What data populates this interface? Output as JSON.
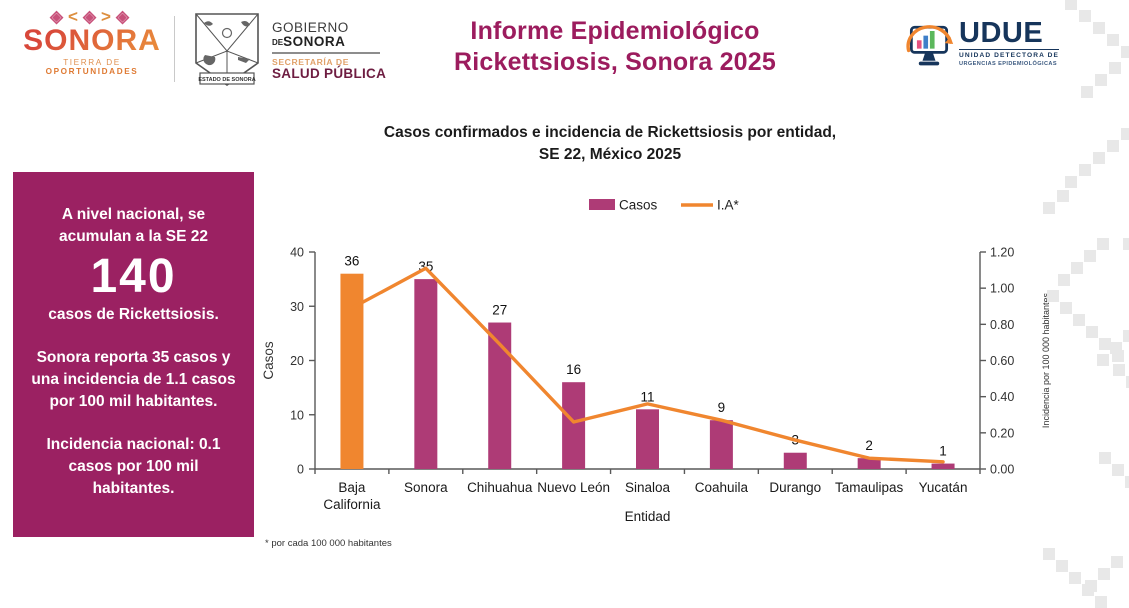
{
  "header": {
    "brand": {
      "ornament": "◈<◈>◈",
      "name": "SONORA",
      "tagline_light": "TIERRA DE ",
      "tagline_bold": "OPORTUNIDADES"
    },
    "government": {
      "seal_caption": "ESTADO DE SONORA",
      "line1": "GOBIERNO",
      "line2_small": "DE",
      "line2_bold": "SONORA",
      "line3": "SECRETARÍA DE",
      "line4": "SALUD PÚBLICA"
    },
    "title_line1": "Informe Epidemiológico",
    "title_line2": "Rickettsiosis, Sonora 2025",
    "udue": {
      "acronym": "UDUE",
      "subtitle_line1": "UNIDAD DETECTORA DE",
      "subtitle_line2": "URGENCIAS EPIDEMIOLÓGICAS"
    }
  },
  "summary_panel": {
    "text1": "A nivel nacional, se acumulan a la SE 22",
    "big_number": "140",
    "text2": "casos de Rickettsiosis.",
    "text3": "Sonora reporta 35 casos y una incidencia de 1.1 casos por 100 mil habitantes.",
    "text4": "Incidencia nacional: 0.1 casos por 100 mil habitantes."
  },
  "chart_data": {
    "type": "bar+line",
    "title_line1": "Casos confirmados e incidencia de Rickettsiosis por entidad,",
    "title_line2": "SE 22, México 2025",
    "categories": [
      "Baja\nCalifornia",
      "Sonora",
      "Chihuahua",
      "Nuevo León",
      "Sinaloa",
      "Coahuila",
      "Durango",
      "Tamaulipas",
      "Yucatán"
    ],
    "series": [
      {
        "name": "Casos",
        "type": "bar",
        "axis": "left",
        "values": [
          36,
          35,
          27,
          16,
          11,
          9,
          3,
          2,
          1
        ],
        "colors": [
          "#f0862f",
          "#ae3b76",
          "#ae3b76",
          "#ae3b76",
          "#ae3b76",
          "#ae3b76",
          "#ae3b76",
          "#ae3b76",
          "#ae3b76"
        ]
      },
      {
        "name": "I.A*",
        "type": "line",
        "axis": "right",
        "values": [
          0.89,
          1.11,
          0.69,
          0.26,
          0.36,
          0.27,
          0.16,
          0.06,
          0.04
        ],
        "color": "#f0862f"
      }
    ],
    "xlabel": "Entidad",
    "ylabel_left": "Casos",
    "ylabel_right": "Incidencia por 100 000 habitantes",
    "ylim_left": [
      0,
      40
    ],
    "yticks_left": [
      "0",
      "10",
      "20",
      "30",
      "40"
    ],
    "ylim_right": [
      0,
      1.2
    ],
    "yticks_right": [
      "0.00",
      "0.20",
      "0.40",
      "0.60",
      "0.80",
      "1.00",
      "1.20"
    ],
    "legend": [
      {
        "label": "Casos",
        "swatch": "#ae3b76",
        "kind": "rect"
      },
      {
        "label": "I.A*",
        "swatch": "#f0862f",
        "kind": "line"
      }
    ],
    "legend_position": "top-center",
    "grid": false,
    "footnote": "* por cada 100 000 habitantes"
  },
  "colors": {
    "accent_magenta": "#9b2162",
    "bar_magenta": "#ae3b76",
    "accent_orange": "#f0862f",
    "title_maroon": "#9c1c5e",
    "udue_navy": "#16355b",
    "axis_gray": "#595959",
    "pattern_gray": "#e8e8e8"
  }
}
